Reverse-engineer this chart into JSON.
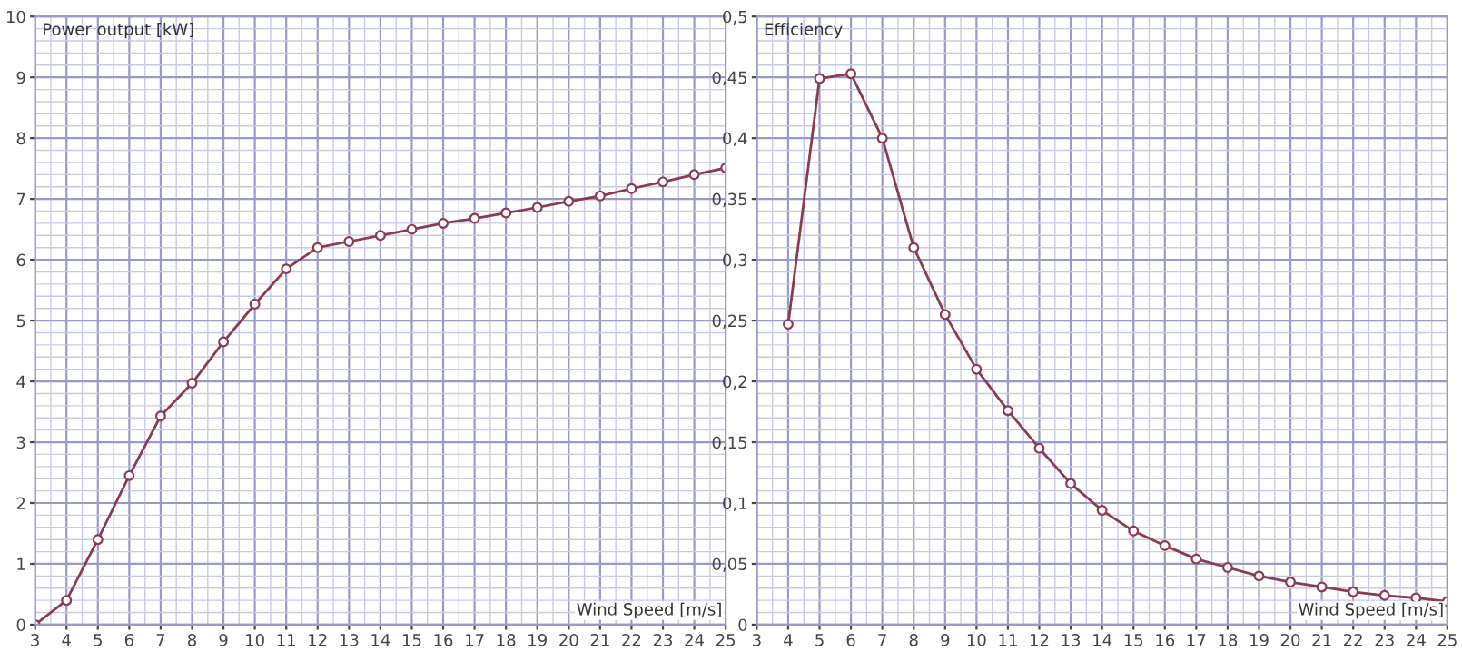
{
  "chart_data": [
    {
      "type": "line",
      "ylabel": "Power output [kW]",
      "xlabel": "Wind Speed [m/s]",
      "marker": "circle",
      "line_style": "solid",
      "grid": true,
      "x": [
        3,
        4,
        5,
        6,
        7,
        8,
        9,
        10,
        11,
        12,
        13,
        14,
        15,
        16,
        17,
        18,
        19,
        20,
        21,
        22,
        23,
        24,
        25
      ],
      "series": [
        {
          "color": "#8b3a4f",
          "values": [
            0,
            0.4,
            1.4,
            2.45,
            3.43,
            3.97,
            4.65,
            5.27,
            5.85,
            6.2,
            6.3,
            6.4,
            6.5,
            6.6,
            6.68,
            6.77,
            6.86,
            6.96,
            7.05,
            7.17,
            7.28,
            7.4,
            7.51
          ]
        }
      ],
      "xlim": [
        3,
        25
      ],
      "xticks": [
        3,
        4,
        5,
        6,
        7,
        8,
        9,
        10,
        11,
        12,
        13,
        14,
        15,
        16,
        17,
        18,
        19,
        20,
        21,
        22,
        23,
        24,
        25
      ],
      "ylim": [
        0,
        10
      ],
      "yticks": [
        0,
        1,
        2,
        3,
        4,
        5,
        6,
        7,
        8,
        9,
        10
      ]
    },
    {
      "type": "line",
      "ylabel": "Efficiency",
      "xlabel": "Wind Speed [m/s]",
      "marker": "circle",
      "line_style": "solid",
      "grid": true,
      "x": [
        4,
        5,
        6,
        7,
        8,
        9,
        10,
        11,
        12,
        13,
        14,
        15,
        16,
        17,
        18,
        19,
        20,
        21,
        22,
        23,
        24,
        25
      ],
      "series": [
        {
          "color": "#8b3a4f",
          "values": [
            0.247,
            0.449,
            0.453,
            0.4,
            0.31,
            0.255,
            0.21,
            0.176,
            0.145,
            0.116,
            0.094,
            0.077,
            0.065,
            0.054,
            0.047,
            0.04,
            0.035,
            0.031,
            0.027,
            0.024,
            0.022,
            0.019
          ]
        }
      ],
      "xlim": [
        3,
        25
      ],
      "xticks": [
        3,
        4,
        5,
        6,
        7,
        8,
        9,
        10,
        11,
        12,
        13,
        14,
        15,
        16,
        17,
        18,
        19,
        20,
        21,
        22,
        23,
        24,
        25
      ],
      "ylim": [
        0,
        0.5
      ],
      "yticks": [
        0,
        {
          "value": 0.05,
          "label": "0,05"
        },
        {
          "value": 0.1,
          "label": "0,1"
        },
        {
          "value": 0.15,
          "label": "0,15"
        },
        {
          "value": 0.2,
          "label": "0,2"
        },
        {
          "value": 0.25,
          "label": "0,25"
        },
        {
          "value": 0.3,
          "label": "0,3"
        },
        {
          "value": 0.35,
          "label": "0,35"
        },
        {
          "value": 0.4,
          "label": "0,4"
        },
        {
          "value": 0.45,
          "label": "0,45"
        },
        {
          "value": 0.5,
          "label": "0,5"
        }
      ]
    }
  ]
}
